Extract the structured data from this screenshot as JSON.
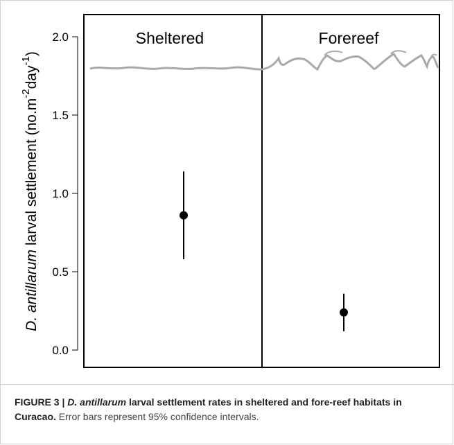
{
  "chart_data": {
    "type": "scatter",
    "categories": [
      "Sheltered",
      "Forereef"
    ],
    "values": [
      0.86,
      0.24
    ],
    "error_bars": [
      {
        "category": "Sheltered",
        "mean": 0.86,
        "lower": 0.58,
        "upper": 1.14
      },
      {
        "category": "Forereef",
        "mean": 0.24,
        "lower": 0.12,
        "upper": 0.36
      }
    ],
    "ylim": [
      0,
      2
    ],
    "yticks": [
      "0.0",
      "0.5",
      "1.0",
      "1.5",
      "2.0"
    ],
    "ylabel_italic": "D. antillarum",
    "ylabel_rest": " larval settlement (no.m",
    "ylabel_sup1": "-2",
    "ylabel_mid": "day",
    "ylabel_sup2": "-1",
    "ylabel_end": ")",
    "grid": false,
    "panel_labels": [
      "Sheltered",
      "Forereef"
    ],
    "colors": {
      "points": "#000000",
      "wave": "#a9a9a9"
    }
  },
  "caption": {
    "figure": "FIGURE 3 | ",
    "species": "D. antillarum",
    "title_rest": " larval settlement rates in sheltered and fore-reef habitats in Curacao.",
    "note": " Error bars represent 95% confidence intervals."
  }
}
